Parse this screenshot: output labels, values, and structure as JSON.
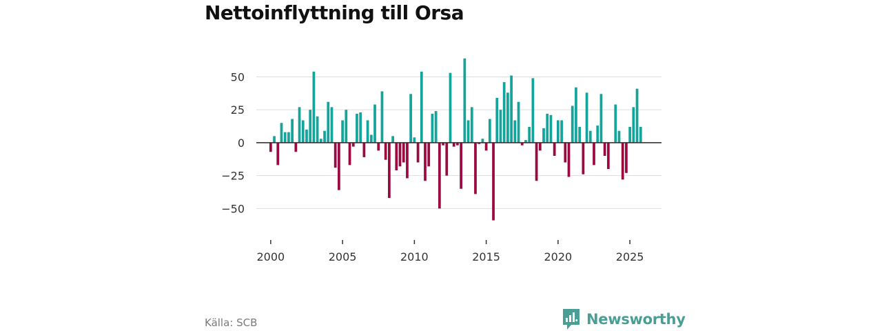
{
  "colors": {
    "positive": "#13a49b",
    "negative": "#9a0a40",
    "grid": "#dddddd",
    "zero": "#333333",
    "brand": "#4a9f94"
  },
  "footer": {
    "source": "Källa: SCB",
    "brand": "Newsworthy"
  },
  "brand_icon": "newsworthy-logo-icon",
  "chart_data": {
    "type": "bar",
    "title": "Nettoinflyttning till Orsa",
    "xlabel": "",
    "ylabel": "",
    "xlim": [
      1999.0,
      2027.2
    ],
    "ylim": [
      -65,
      67
    ],
    "yticks": [
      50,
      25,
      0,
      -25,
      -50
    ],
    "ytick_labels": [
      "50",
      "25",
      "0",
      "−25",
      "−50"
    ],
    "xticks": [
      2000,
      2005,
      2010,
      2015,
      2020,
      2025
    ],
    "xtick_labels": [
      "2000",
      "2005",
      "2010",
      "2015",
      "2020",
      "2025"
    ],
    "period": "quarter",
    "start": 2000.0,
    "values": [
      -7,
      5,
      -17,
      15,
      8,
      8,
      18,
      -7,
      27,
      17,
      10,
      25,
      54,
      20,
      3,
      9,
      31,
      27,
      -19,
      -36,
      17,
      25,
      -17,
      -3,
      22,
      23,
      -11,
      17,
      6,
      29,
      -6,
      39,
      -13,
      -42,
      5,
      -21,
      -18,
      -15,
      -27,
      37,
      4,
      -15,
      54,
      -29,
      -18,
      22,
      24,
      -50,
      -2,
      -25,
      53,
      -3,
      -2,
      -35,
      64,
      17,
      27,
      -39,
      -1,
      3,
      -6,
      18,
      -59,
      34,
      25,
      46,
      38,
      51,
      17,
      31,
      -2,
      2,
      12,
      49,
      -29,
      -6,
      11,
      22,
      21,
      -10,
      17,
      17,
      -15,
      -26,
      28,
      42,
      12,
      -24,
      38,
      9,
      -17,
      13,
      37,
      -10,
      -20,
      0,
      29,
      9,
      -28,
      -23,
      12,
      27,
      41,
      12
    ]
  }
}
